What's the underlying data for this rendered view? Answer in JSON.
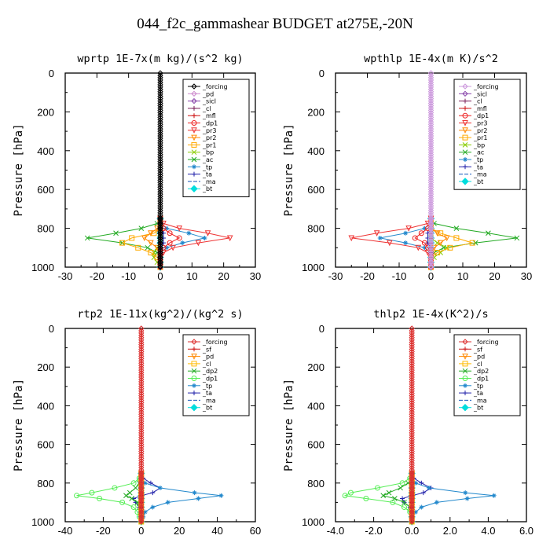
{
  "suptitle": "044_f2c_gammashear  BUDGET at275E,-20N",
  "ylabel": "Pressure [hPa]",
  "ylim": [
    1000,
    0
  ],
  "yticks": [
    0,
    200,
    400,
    600,
    800,
    1000
  ],
  "chart_data": [
    {
      "type": "line",
      "title": "wprtp  1E-7x(m kg)/(s^2 kg)",
      "xlim": [
        -30,
        30
      ],
      "xticks": [
        -30,
        -20,
        -10,
        0,
        10,
        20,
        30
      ],
      "xticklabels": [
        "-30",
        "-20",
        "-10",
        "0",
        "10",
        "20",
        "30"
      ],
      "ylabel": "Pressure [hPa]",
      "y": [
        0,
        750,
        775,
        800,
        825,
        850,
        875,
        900,
        925,
        950,
        975,
        1000
      ],
      "series": [
        {
          "name": "_forcing",
          "color": "#000000",
          "marker": "diamond",
          "values": [
            0,
            0,
            0,
            0,
            0,
            0,
            0,
            0,
            0,
            0,
            0,
            0
          ]
        },
        {
          "name": "_pd",
          "color": "#cc88cc",
          "marker": "diamond",
          "values": [
            0,
            0,
            0,
            0,
            0,
            0,
            0,
            0,
            0,
            0,
            0,
            0
          ]
        },
        {
          "name": "_sicl",
          "color": "#8844aa",
          "marker": "diamond",
          "values": [
            0,
            0,
            0,
            0,
            0,
            0,
            0,
            0,
            0,
            0,
            0,
            0
          ]
        },
        {
          "name": "_cl",
          "color": "#7a1f5a",
          "marker": "plus",
          "values": [
            0,
            0,
            0,
            0,
            0,
            0,
            0,
            0,
            0,
            0,
            0,
            0
          ]
        },
        {
          "name": "_mfl",
          "color": "#cc1111",
          "marker": "plus",
          "values": [
            0,
            0,
            0,
            0,
            0,
            0,
            0,
            0,
            0,
            0,
            0,
            0
          ]
        },
        {
          "name": "_dp1",
          "color": "#ee2222",
          "marker": "circle",
          "values": [
            0,
            0,
            0,
            1,
            3,
            6,
            3,
            1,
            0,
            0,
            0,
            0
          ]
        },
        {
          "name": "_pr3",
          "color": "#ee3333",
          "marker": "triangle",
          "values": [
            0,
            0,
            1,
            6,
            15,
            22,
            12,
            4,
            1,
            0,
            0,
            0
          ]
        },
        {
          "name": "_pr2",
          "color": "#ff8800",
          "marker": "triangle",
          "values": [
            0,
            0,
            0,
            -1,
            -3,
            -5,
            -3,
            -1,
            0,
            0,
            0,
            0
          ]
        },
        {
          "name": "_pr1",
          "color": "#ffaa00",
          "marker": "square",
          "values": [
            0,
            0,
            0,
            0,
            -2,
            -9,
            -12,
            -7,
            -3,
            -1,
            0,
            0
          ]
        },
        {
          "name": "_bp",
          "color": "#88cc00",
          "marker": "x",
          "values": [
            0,
            0,
            0,
            0,
            0,
            0,
            0,
            -1,
            -2,
            -2,
            -1,
            0
          ]
        },
        {
          "name": "_ac",
          "color": "#22aa22",
          "marker": "x",
          "values": [
            0,
            0,
            -1,
            -6,
            -14,
            -23,
            -12,
            -4,
            -1,
            0,
            0,
            0
          ]
        },
        {
          "name": "_tp",
          "color": "#2288cc",
          "marker": "star",
          "values": [
            0,
            0,
            0,
            2,
            9,
            14,
            7,
            2,
            0,
            0,
            0,
            0
          ]
        },
        {
          "name": "_ta",
          "color": "#2222aa",
          "marker": "plus",
          "values": [
            0,
            0,
            0,
            0,
            1,
            1,
            1,
            0,
            0,
            0,
            0,
            0
          ]
        },
        {
          "name": "_ma",
          "color": "#1155bb",
          "marker": "none",
          "values": [
            0,
            0,
            0,
            0,
            0,
            0,
            0,
            0,
            0,
            0,
            0,
            0
          ]
        },
        {
          "name": "_bt",
          "color": "#00dddd",
          "marker": "bigdiamond",
          "values": [
            0,
            0,
            0,
            0,
            0,
            0,
            0,
            0,
            0,
            0,
            0,
            0
          ]
        }
      ]
    },
    {
      "type": "line",
      "title": "wpthlp  1E-4x(m K)/s^2",
      "xlim": [
        -30,
        30
      ],
      "xticks": [
        -30,
        -20,
        -10,
        0,
        10,
        20,
        30
      ],
      "xticklabels": [
        "-30",
        "-20",
        "-10",
        "0",
        "10",
        "20",
        "30"
      ],
      "ylabel": "Pressure [hPa]",
      "y": [
        0,
        750,
        775,
        800,
        825,
        850,
        875,
        900,
        925,
        950,
        975,
        1000
      ],
      "series": [
        {
          "name": "_forcing",
          "color": "#cc99dd",
          "marker": "diamond",
          "values": [
            0,
            0,
            0,
            0,
            0,
            0,
            0,
            0,
            0,
            0,
            0,
            0
          ]
        },
        {
          "name": "_sicl",
          "color": "#8844aa",
          "marker": "diamond",
          "values": [
            0,
            0,
            0,
            0,
            0,
            0,
            0,
            0,
            0,
            0,
            0,
            0
          ]
        },
        {
          "name": "_cl",
          "color": "#7a1f5a",
          "marker": "plus",
          "values": [
            0,
            0,
            0,
            0,
            0,
            0,
            0,
            0,
            0,
            0,
            0,
            0
          ]
        },
        {
          "name": "_mfl",
          "color": "#cc1111",
          "marker": "plus",
          "values": [
            0,
            0,
            0,
            0,
            0,
            0,
            0,
            0,
            0,
            0,
            0,
            0
          ]
        },
        {
          "name": "_dp1",
          "color": "#ee2222",
          "marker": "circle",
          "values": [
            0,
            0,
            0,
            -1,
            -3,
            -5,
            -2,
            -1,
            0,
            0,
            0,
            0
          ]
        },
        {
          "name": "_pr3",
          "color": "#ee3333",
          "marker": "triangle",
          "values": [
            0,
            0,
            -1,
            -7,
            -17,
            -25,
            -13,
            -4,
            -1,
            0,
            0,
            0
          ]
        },
        {
          "name": "_pr2",
          "color": "#ff8800",
          "marker": "triangle",
          "values": [
            0,
            0,
            0,
            0,
            2,
            5,
            3,
            1,
            0,
            0,
            0,
            0
          ]
        },
        {
          "name": "_pr1",
          "color": "#ffaa00",
          "marker": "square",
          "values": [
            0,
            0,
            0,
            0,
            3,
            8,
            13,
            6,
            2,
            0,
            0,
            0
          ]
        },
        {
          "name": "_bp",
          "color": "#88cc00",
          "marker": "x",
          "values": [
            0,
            0,
            0,
            0,
            0,
            0,
            2,
            5,
            3,
            1,
            0,
            0
          ]
        },
        {
          "name": "_ac",
          "color": "#22aa22",
          "marker": "x",
          "values": [
            0,
            0,
            1,
            8,
            18,
            27,
            14,
            4,
            1,
            0,
            0,
            0
          ]
        },
        {
          "name": "_tp",
          "color": "#2288cc",
          "marker": "star",
          "values": [
            0,
            0,
            0,
            -2,
            -8,
            -16,
            -8,
            -2,
            0,
            0,
            0,
            0
          ]
        },
        {
          "name": "_ta",
          "color": "#2222aa",
          "marker": "plus",
          "values": [
            0,
            0,
            0,
            0,
            -1,
            -1,
            -1,
            0,
            0,
            0,
            0,
            0
          ]
        },
        {
          "name": "_ma",
          "color": "#1155bb",
          "marker": "none",
          "values": [
            0,
            0,
            0,
            0,
            0,
            0,
            0,
            0,
            0,
            0,
            0,
            0
          ]
        },
        {
          "name": "_bt",
          "color": "#00dddd",
          "marker": "bigdiamond",
          "values": [
            0,
            0,
            0,
            0,
            0,
            0,
            0,
            0,
            0,
            0,
            0,
            0
          ]
        }
      ]
    },
    {
      "type": "line",
      "title": "rtp2  1E-11x(kg^2)/(kg^2 s)",
      "xlim": [
        -40,
        60
      ],
      "xticks": [
        -40,
        -20,
        0,
        20,
        40,
        60
      ],
      "xticklabels": [
        "-40",
        "-20",
        "0",
        "20",
        "40",
        "60"
      ],
      "ylabel": "Pressure [hPa]",
      "y": [
        0,
        750,
        775,
        800,
        825,
        850,
        865,
        880,
        900,
        925,
        950,
        975,
        1000
      ],
      "series": [
        {
          "name": "_forcing",
          "color": "#dd3333",
          "marker": "diamond",
          "values": [
            0,
            0,
            0,
            0,
            0,
            0,
            0,
            0,
            0,
            0,
            0,
            0,
            0
          ]
        },
        {
          "name": "_sf",
          "color": "#cc1111",
          "marker": "plus",
          "values": [
            0,
            0,
            0,
            0,
            0,
            0,
            0,
            0,
            0,
            0,
            0,
            0,
            0
          ]
        },
        {
          "name": "_pd",
          "color": "#ff8800",
          "marker": "triangle",
          "values": [
            0,
            0,
            0,
            0,
            0,
            0,
            0,
            0,
            0,
            0,
            0,
            0,
            0
          ]
        },
        {
          "name": "_cl",
          "color": "#ffbb00",
          "marker": "square",
          "values": [
            0,
            0,
            0,
            0,
            0,
            0,
            0,
            0,
            0,
            0,
            0,
            0,
            0
          ]
        },
        {
          "name": "_dp2",
          "color": "#22aa22",
          "marker": "x",
          "values": [
            0,
            0,
            0,
            -1,
            -3,
            -6,
            -8,
            -5,
            -2,
            -1,
            0,
            0,
            0
          ]
        },
        {
          "name": "_dp1",
          "color": "#55ee55",
          "marker": "circle",
          "values": [
            0,
            0,
            -1,
            -4,
            -14,
            -26,
            -34,
            -22,
            -10,
            -4,
            -2,
            -1,
            0
          ]
        },
        {
          "name": "_tp",
          "color": "#2288cc",
          "marker": "star",
          "values": [
            0,
            0,
            0,
            2,
            10,
            28,
            42,
            30,
            14,
            6,
            2,
            1,
            0
          ]
        },
        {
          "name": "_ta",
          "color": "#2222aa",
          "marker": "plus",
          "values": [
            0,
            0,
            1,
            5,
            10,
            6,
            0,
            -4,
            -3,
            -1,
            0,
            0,
            0
          ]
        },
        {
          "name": "_ma",
          "color": "#1155bb",
          "marker": "none",
          "values": [
            0,
            0,
            0,
            0,
            0,
            0,
            0,
            0,
            0,
            0,
            0,
            0,
            0
          ]
        },
        {
          "name": "_bt",
          "color": "#00dddd",
          "marker": "bigdiamond",
          "values": [
            0,
            0,
            0,
            0,
            0,
            0,
            0,
            0,
            0,
            0,
            0,
            0,
            0
          ]
        }
      ]
    },
    {
      "type": "line",
      "title": "thlp2  1E-4x(K^2)/s",
      "xlim": [
        -4,
        6
      ],
      "xticks": [
        -4,
        -2,
        0,
        2,
        4,
        6
      ],
      "xticklabels": [
        "-4.0",
        "-2.0",
        "0.0",
        "2.0",
        "4.0",
        "6.0"
      ],
      "ylabel": "Pressure [hPa]",
      "y": [
        0,
        750,
        775,
        800,
        825,
        850,
        865,
        880,
        900,
        925,
        950,
        975,
        1000
      ],
      "series": [
        {
          "name": "_forcing",
          "color": "#dd3333",
          "marker": "diamond",
          "values": [
            0,
            0,
            0,
            0,
            0,
            0,
            0,
            0,
            0,
            0,
            0,
            0,
            0
          ]
        },
        {
          "name": "_sf",
          "color": "#cc1111",
          "marker": "plus",
          "values": [
            0,
            0,
            0,
            0,
            0,
            0,
            0,
            0,
            0,
            0,
            0,
            0,
            0
          ]
        },
        {
          "name": "_pd",
          "color": "#ff8800",
          "marker": "triangle",
          "values": [
            0,
            0,
            0,
            0,
            0,
            0,
            0,
            0,
            0,
            0,
            0,
            0,
            0
          ]
        },
        {
          "name": "_cl",
          "color": "#ffbb00",
          "marker": "square",
          "values": [
            0,
            0,
            0,
            0,
            0,
            0,
            0,
            0,
            0,
            0,
            0,
            0,
            0
          ]
        },
        {
          "name": "_dp2",
          "color": "#22aa22",
          "marker": "x",
          "values": [
            0,
            0,
            0,
            -0.2,
            -0.6,
            -1.2,
            -1.5,
            -0.9,
            -0.4,
            -0.1,
            0,
            0,
            0
          ]
        },
        {
          "name": "_dp1",
          "color": "#55ee55",
          "marker": "circle",
          "values": [
            0,
            0,
            -0.1,
            -0.5,
            -1.8,
            -3.2,
            -3.5,
            -2.4,
            -1.0,
            -0.4,
            -0.1,
            0,
            0
          ]
        },
        {
          "name": "_tp",
          "color": "#2288cc",
          "marker": "star",
          "values": [
            0,
            0,
            0,
            0.2,
            0.9,
            2.8,
            4.3,
            2.9,
            1.3,
            0.5,
            0.2,
            0,
            0
          ]
        },
        {
          "name": "_ta",
          "color": "#2222aa",
          "marker": "plus",
          "values": [
            0,
            0,
            0.1,
            0.5,
            1.0,
            0.6,
            0,
            -0.5,
            -0.4,
            -0.1,
            0,
            0,
            0
          ]
        },
        {
          "name": "_ma",
          "color": "#1155bb",
          "marker": "none",
          "values": [
            0,
            0,
            0,
            0,
            0,
            0,
            0,
            0,
            0,
            0,
            0,
            0,
            0
          ]
        },
        {
          "name": "_bt",
          "color": "#00dddd",
          "marker": "bigdiamond",
          "values": [
            0,
            0,
            0,
            0,
            0,
            0,
            0,
            0,
            0,
            0,
            0,
            0,
            0
          ]
        }
      ]
    }
  ]
}
